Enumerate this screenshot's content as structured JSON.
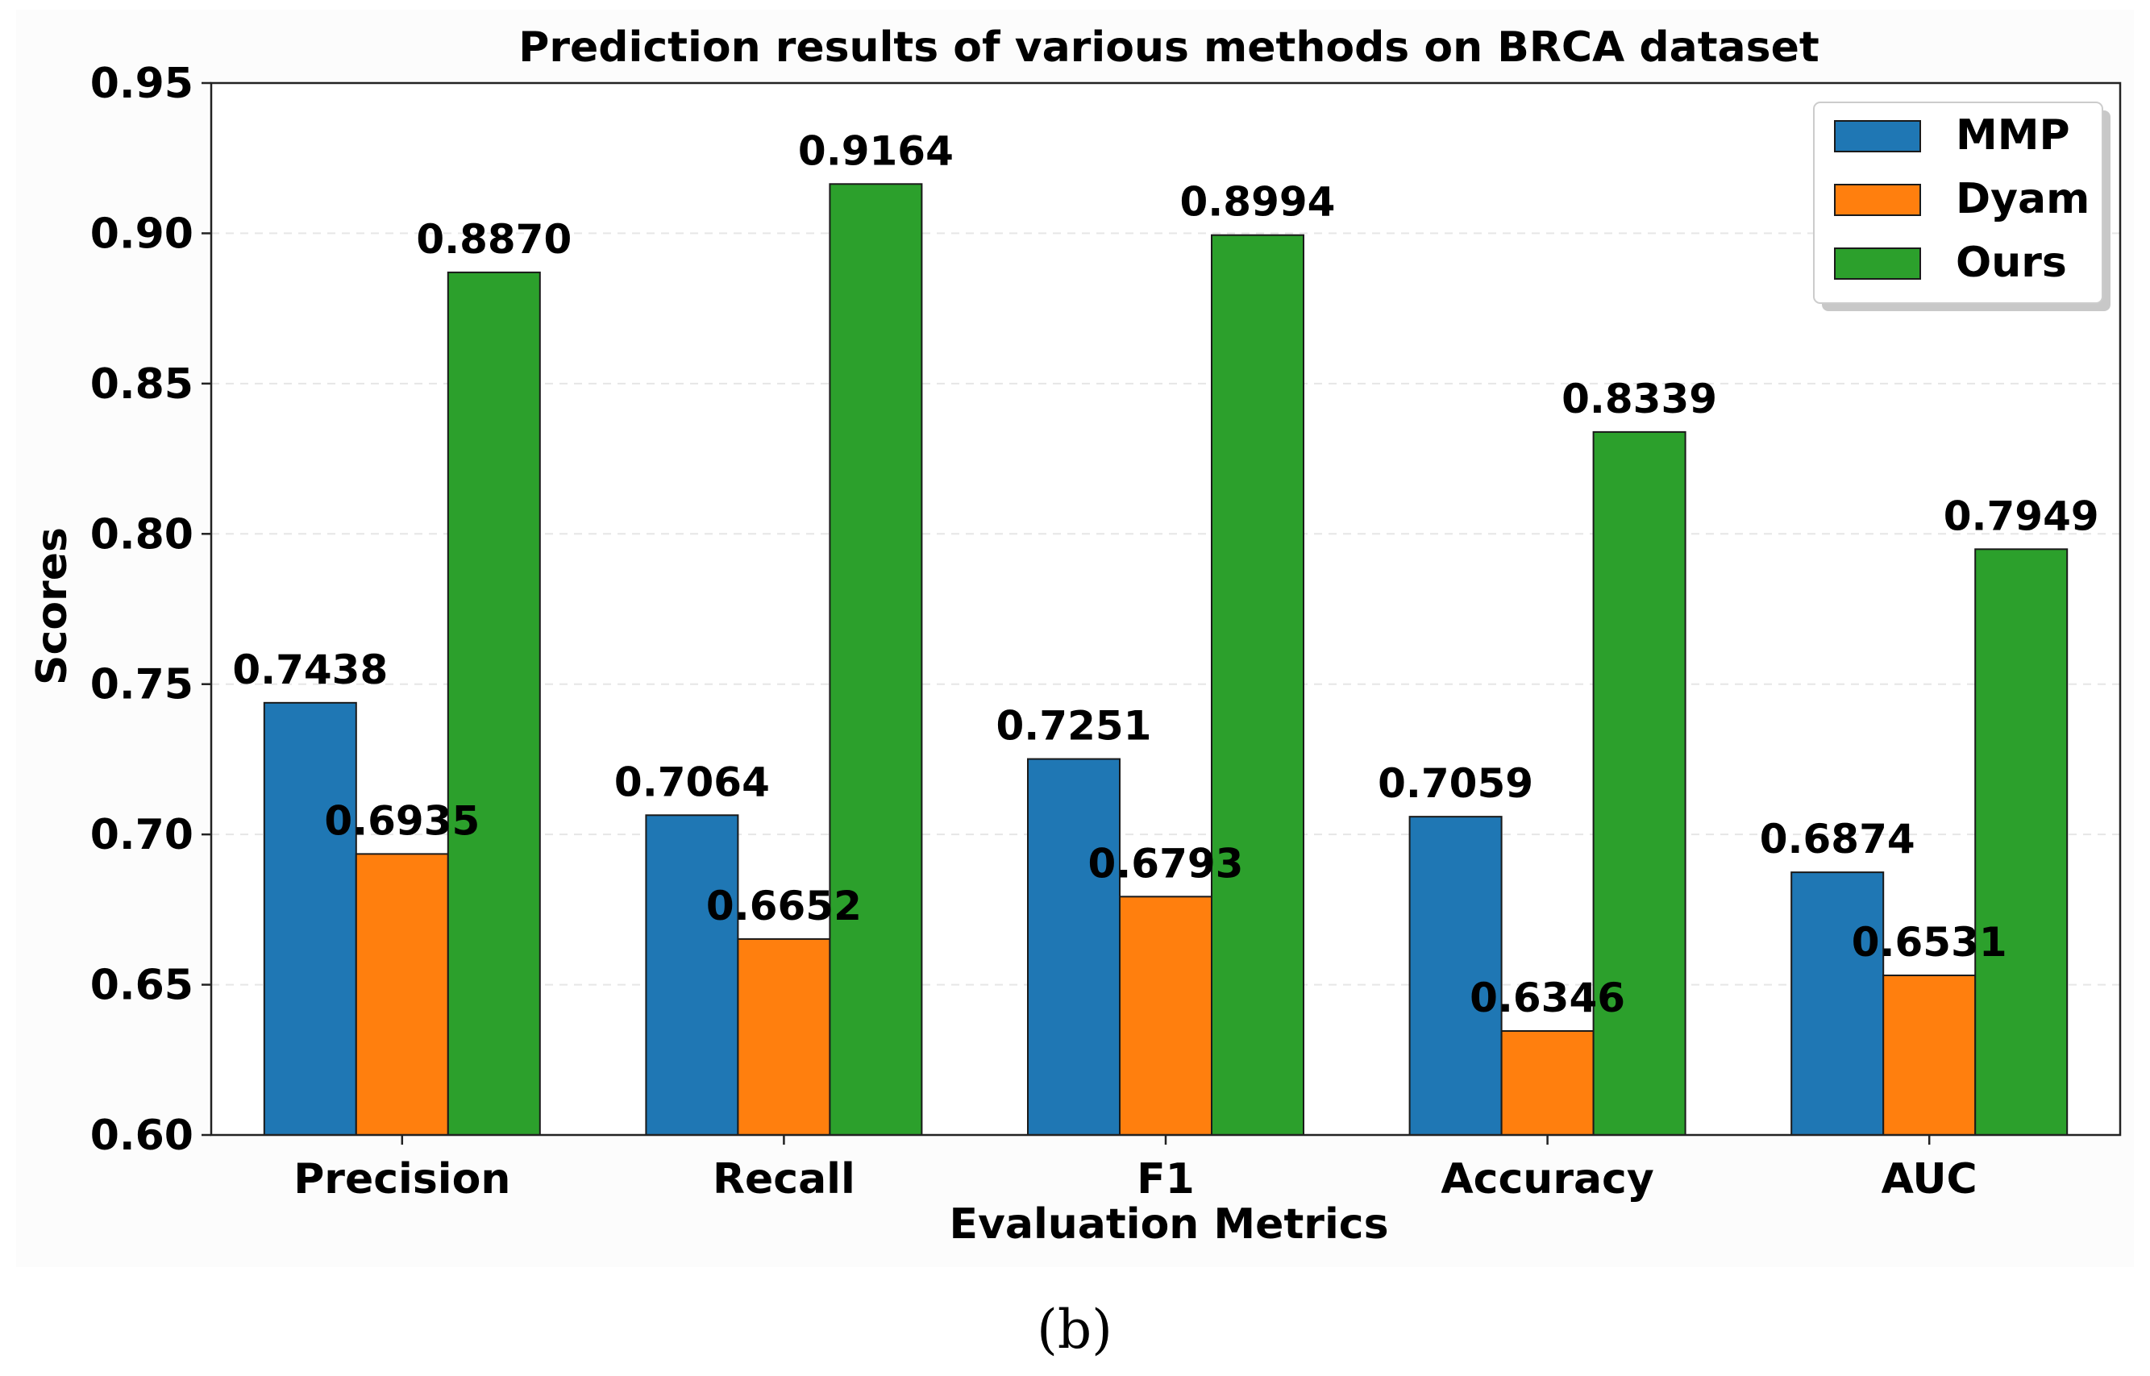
{
  "chart_data": {
    "type": "bar",
    "title": "Prediction results of various methods on BRCA dataset",
    "xlabel": "Evaluation Metrics",
    "ylabel": "Scores",
    "ylim": [
      0.6,
      0.95
    ],
    "yticks": [
      0.6,
      0.65,
      0.7,
      0.75,
      0.8,
      0.85,
      0.9,
      0.95
    ],
    "ytick_labels": [
      "0.60",
      "0.65",
      "0.70",
      "0.75",
      "0.80",
      "0.85",
      "0.90",
      "0.95"
    ],
    "categories": [
      "Precision",
      "Recall",
      "F1",
      "Accuracy",
      "AUC"
    ],
    "series": [
      {
        "name": "MMP",
        "color": "#1f77b4",
        "values": [
          0.7438,
          0.7064,
          0.7251,
          0.7059,
          0.6874
        ],
        "labels": [
          "0.7438",
          "0.7064",
          "0.7251",
          "0.7059",
          "0.6874"
        ]
      },
      {
        "name": "Dyam",
        "color": "#ff7f0e",
        "values": [
          0.6935,
          0.6652,
          0.6793,
          0.6346,
          0.6531
        ],
        "labels": [
          "0.6935",
          "0.6652",
          "0.6793",
          "0.6346",
          "0.6531"
        ]
      },
      {
        "name": "Ours",
        "color": "#2ca02c",
        "values": [
          0.887,
          0.9164,
          0.8994,
          0.8339,
          0.7949
        ],
        "labels": [
          "0.8870",
          "0.9164",
          "0.8994",
          "0.8339",
          "0.7949"
        ]
      }
    ],
    "grid": "y-dashed",
    "legend_position": "top-right"
  },
  "caption": "(b)"
}
